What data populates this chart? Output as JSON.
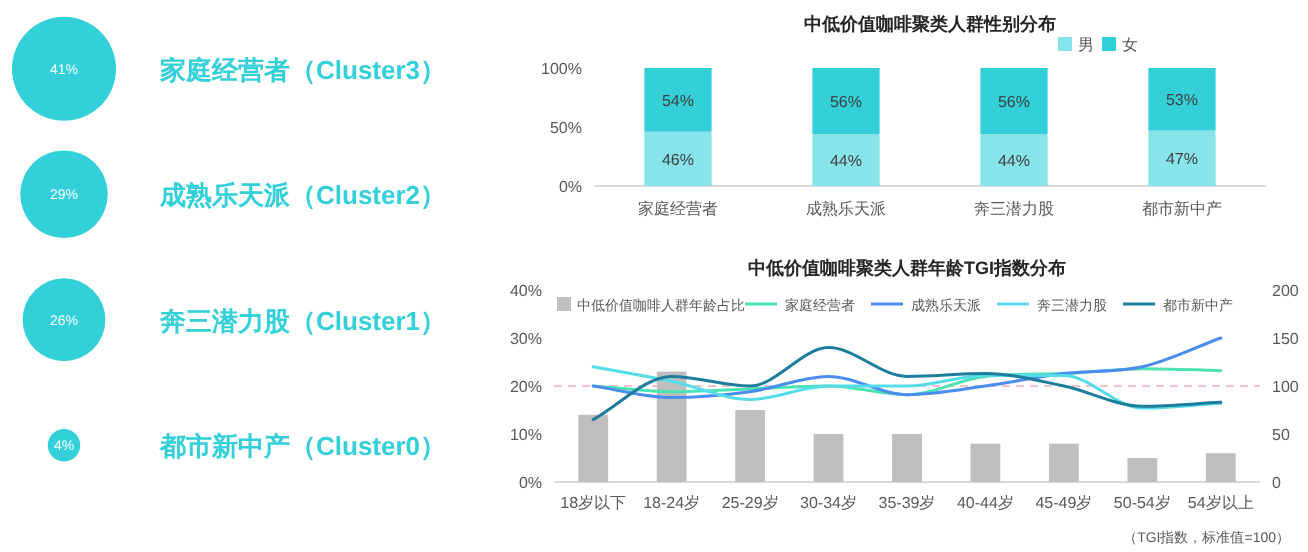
{
  "chart_data": [
    {
      "type": "other",
      "categories": [
        "家庭经营者（Cluster3）",
        "成熟乐天派（Cluster2）",
        "奔三潜力股（Cluster1）",
        "都市新中产（Cluster0）"
      ],
      "values": [
        41,
        29,
        26,
        4
      ],
      "value_labels": [
        "41%",
        "29%",
        "26%",
        "4%"
      ],
      "color": "#33d0da"
    },
    {
      "type": "bar",
      "title": "中低价值咖啡聚类人群性别分布",
      "stacked": true,
      "categories": [
        "家庭经营者",
        "成熟乐天派",
        "奔三潜力股",
        "都市新中产"
      ],
      "series": [
        {
          "name": "男",
          "color": "#86e4ea",
          "values": [
            46,
            44,
            44,
            47
          ],
          "value_labels": [
            "46%",
            "44%",
            "44%",
            "47%"
          ]
        },
        {
          "name": "女",
          "color": "#33d0da",
          "values": [
            54,
            56,
            56,
            53
          ],
          "value_labels": [
            "54%",
            "56%",
            "56%",
            "53%"
          ]
        }
      ],
      "ylim": [
        0,
        100
      ],
      "yticks": [
        {
          "value": 0,
          "label": "0%"
        },
        {
          "value": 50,
          "label": "50%"
        },
        {
          "value": 100,
          "label": "100%"
        }
      ],
      "legend": "top right"
    },
    {
      "type": "bar",
      "title": "中低价值咖啡聚类人群年龄TGI指数分布",
      "categories": [
        "18岁以下",
        "18-24岁",
        "25-29岁",
        "30-34岁",
        "35-39岁",
        "40-44岁",
        "45-49岁",
        "50-54岁",
        "54岁以上"
      ],
      "series": [
        {
          "name": "中低价值咖啡人群年龄占比",
          "color": "#bfbfbf",
          "values": [
            14,
            23,
            15,
            10,
            10,
            8,
            8,
            5,
            6
          ]
        },
        {
          "name": "家庭经营者",
          "type": "line",
          "axis": "y2",
          "color": "#4be3b4",
          "values": [
            100,
            94,
            97,
            100,
            91,
            110,
            113,
            118,
            116
          ]
        },
        {
          "name": "成熟乐天派",
          "type": "line",
          "axis": "y2",
          "color": "#4a8df0",
          "values": [
            100,
            88,
            94,
            110,
            91,
            100,
            113,
            120,
            150
          ]
        },
        {
          "name": "奔三潜力股",
          "type": "line",
          "axis": "y2",
          "color": "#54dde8",
          "values": [
            120,
            105,
            86,
            100,
            100,
            111,
            111,
            77,
            82
          ]
        },
        {
          "name": "都市新中产",
          "type": "line",
          "axis": "y2",
          "color": "#1e7d9c",
          "values": [
            65,
            110,
            100,
            140,
            110,
            113,
            100,
            79,
            83
          ]
        }
      ],
      "ylim": [
        0,
        40
      ],
      "yticks": [
        {
          "value": 0,
          "label": "0%"
        },
        {
          "value": 10,
          "label": "10%"
        },
        {
          "value": 20,
          "label": "20%"
        },
        {
          "value": 30,
          "label": "30%"
        },
        {
          "value": 40,
          "label": "40%"
        }
      ],
      "y2lim": [
        0,
        200
      ],
      "y2ticks": [
        0,
        50,
        100,
        150,
        200
      ],
      "ref_lines": [
        {
          "axis": "y2",
          "value": 100,
          "color": "#f6c0c8",
          "line_style": "dashed"
        }
      ],
      "legend": "top",
      "annotations": [
        "（TGI指数，标准值=100）"
      ]
    }
  ]
}
